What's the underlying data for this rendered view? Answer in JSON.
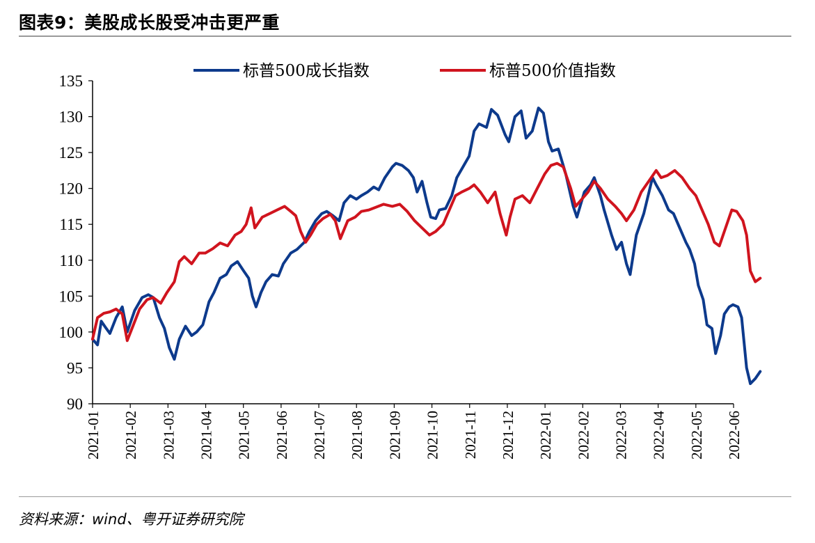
{
  "page": {
    "title": "图表9：美股成长股受冲击更严重",
    "source": "资料来源：wind、粤开证券研究院"
  },
  "chart_data": {
    "type": "line",
    "ylim": [
      90,
      135
    ],
    "yticks": [
      90,
      95,
      100,
      105,
      110,
      115,
      120,
      125,
      130,
      135
    ],
    "xticks": [
      "2021-01",
      "2021-02",
      "2021-03",
      "2021-04",
      "2021-05",
      "2021-06",
      "2021-07",
      "2021-08",
      "2021-09",
      "2021-10",
      "2021-11",
      "2021-12",
      "2022-01",
      "2022-02",
      "2022-03",
      "2022-04",
      "2022-05",
      "2022-06"
    ],
    "x_start": "2021-01-01",
    "x_end": "2022-06-06",
    "grid": false,
    "legend_position": "top",
    "series": [
      {
        "name": "标普500成长指数",
        "color": "#0d3a8c",
        "points": [
          [
            "2021-01-01",
            99.0
          ],
          [
            "2021-01-05",
            98.2
          ],
          [
            "2021-01-08",
            101.5
          ],
          [
            "2021-01-12",
            100.5
          ],
          [
            "2021-01-15",
            99.8
          ],
          [
            "2021-01-20",
            102.0
          ],
          [
            "2021-01-25",
            103.5
          ],
          [
            "2021-01-29",
            100.0
          ],
          [
            "2021-02-04",
            103.0
          ],
          [
            "2021-02-10",
            104.8
          ],
          [
            "2021-02-15",
            105.2
          ],
          [
            "2021-02-19",
            104.8
          ],
          [
            "2021-02-24",
            102.0
          ],
          [
            "2021-02-28",
            100.5
          ],
          [
            "2021-03-04",
            97.8
          ],
          [
            "2021-03-08",
            96.2
          ],
          [
            "2021-03-12",
            99.0
          ],
          [
            "2021-03-17",
            100.8
          ],
          [
            "2021-03-22",
            99.5
          ],
          [
            "2021-03-26",
            100.0
          ],
          [
            "2021-03-31",
            101.0
          ],
          [
            "2021-04-05",
            104.2
          ],
          [
            "2021-04-09",
            105.5
          ],
          [
            "2021-04-14",
            107.5
          ],
          [
            "2021-04-19",
            108.0
          ],
          [
            "2021-04-23",
            109.2
          ],
          [
            "2021-04-28",
            109.8
          ],
          [
            "2021-05-03",
            108.5
          ],
          [
            "2021-05-07",
            107.5
          ],
          [
            "2021-05-10",
            105.0
          ],
          [
            "2021-05-13",
            103.5
          ],
          [
            "2021-05-17",
            105.5
          ],
          [
            "2021-05-21",
            107.0
          ],
          [
            "2021-05-26",
            108.0
          ],
          [
            "2021-05-31",
            107.8
          ],
          [
            "2021-06-04",
            109.5
          ],
          [
            "2021-06-10",
            111.0
          ],
          [
            "2021-06-15",
            111.5
          ],
          [
            "2021-06-21",
            112.5
          ],
          [
            "2021-06-25",
            114.0
          ],
          [
            "2021-06-30",
            115.5
          ],
          [
            "2021-07-05",
            116.5
          ],
          [
            "2021-07-09",
            116.8
          ],
          [
            "2021-07-14",
            116.2
          ],
          [
            "2021-07-19",
            115.5
          ],
          [
            "2021-07-23",
            118.0
          ],
          [
            "2021-07-28",
            119.0
          ],
          [
            "2021-08-02",
            118.5
          ],
          [
            "2021-08-06",
            119.0
          ],
          [
            "2021-08-11",
            119.5
          ],
          [
            "2021-08-16",
            120.2
          ],
          [
            "2021-08-20",
            119.8
          ],
          [
            "2021-08-25",
            121.5
          ],
          [
            "2021-08-31",
            123.0
          ],
          [
            "2021-09-03",
            123.5
          ],
          [
            "2021-09-08",
            123.2
          ],
          [
            "2021-09-13",
            122.5
          ],
          [
            "2021-09-17",
            121.5
          ],
          [
            "2021-09-20",
            119.5
          ],
          [
            "2021-09-24",
            121.0
          ],
          [
            "2021-09-28",
            118.0
          ],
          [
            "2021-10-01",
            116.0
          ],
          [
            "2021-10-05",
            115.8
          ],
          [
            "2021-10-08",
            117.0
          ],
          [
            "2021-10-13",
            117.2
          ],
          [
            "2021-10-18",
            119.0
          ],
          [
            "2021-10-22",
            121.5
          ],
          [
            "2021-10-27",
            123.0
          ],
          [
            "2021-11-01",
            124.5
          ],
          [
            "2021-11-05",
            128.0
          ],
          [
            "2021-11-09",
            129.0
          ],
          [
            "2021-11-15",
            128.5
          ],
          [
            "2021-11-19",
            131.0
          ],
          [
            "2021-11-24",
            130.2
          ],
          [
            "2021-11-30",
            127.5
          ],
          [
            "2021-12-03",
            126.5
          ],
          [
            "2021-12-08",
            130.0
          ],
          [
            "2021-12-13",
            130.8
          ],
          [
            "2021-12-17",
            127.0
          ],
          [
            "2021-12-22",
            128.0
          ],
          [
            "2021-12-27",
            131.2
          ],
          [
            "2021-12-31",
            130.5
          ],
          [
            "2022-01-04",
            126.5
          ],
          [
            "2022-01-07",
            125.2
          ],
          [
            "2022-01-12",
            125.5
          ],
          [
            "2022-01-18",
            122.0
          ],
          [
            "2022-01-24",
            117.5
          ],
          [
            "2022-01-27",
            116.0
          ],
          [
            "2022-02-02",
            119.5
          ],
          [
            "2022-02-07",
            120.5
          ],
          [
            "2022-02-10",
            121.5
          ],
          [
            "2022-02-15",
            119.0
          ],
          [
            "2022-02-18",
            117.0
          ],
          [
            "2022-02-24",
            113.5
          ],
          [
            "2022-02-28",
            111.5
          ],
          [
            "2022-03-04",
            112.5
          ],
          [
            "2022-03-08",
            109.5
          ],
          [
            "2022-03-11",
            108.0
          ],
          [
            "2022-03-16",
            113.5
          ],
          [
            "2022-03-22",
            116.5
          ],
          [
            "2022-03-29",
            121.5
          ],
          [
            "2022-04-01",
            120.5
          ],
          [
            "2022-04-06",
            119.0
          ],
          [
            "2022-04-11",
            117.0
          ],
          [
            "2022-04-15",
            116.5
          ],
          [
            "2022-04-20",
            114.5
          ],
          [
            "2022-04-25",
            112.5
          ],
          [
            "2022-04-28",
            111.5
          ],
          [
            "2022-05-02",
            109.5
          ],
          [
            "2022-05-05",
            106.5
          ],
          [
            "2022-05-09",
            104.5
          ],
          [
            "2022-05-12",
            101.0
          ],
          [
            "2022-05-16",
            100.5
          ],
          [
            "2022-05-19",
            97.0
          ],
          [
            "2022-05-23",
            99.5
          ],
          [
            "2022-05-26",
            102.5
          ],
          [
            "2022-05-30",
            103.5
          ],
          [
            "2022-06-02",
            103.8
          ],
          [
            "2022-06-06",
            103.5
          ],
          [
            "2022-06-09",
            102.0
          ],
          [
            "2022-06-13",
            95.0
          ],
          [
            "2022-06-16",
            92.8
          ],
          [
            "2022-06-20",
            93.5
          ],
          [
            "2022-06-24",
            94.5
          ]
        ]
      },
      {
        "name": "标普500价值指数",
        "color": "#d0141e",
        "points": [
          [
            "2021-01-01",
            99.0
          ],
          [
            "2021-01-05",
            102.0
          ],
          [
            "2021-01-10",
            102.6
          ],
          [
            "2021-01-15",
            102.8
          ],
          [
            "2021-01-20",
            103.2
          ],
          [
            "2021-01-25",
            102.5
          ],
          [
            "2021-01-29",
            98.8
          ],
          [
            "2021-02-03",
            101.0
          ],
          [
            "2021-02-08",
            103.2
          ],
          [
            "2021-02-14",
            104.5
          ],
          [
            "2021-02-19",
            104.8
          ],
          [
            "2021-02-25",
            104.0
          ],
          [
            "2021-03-02",
            105.5
          ],
          [
            "2021-03-08",
            107.0
          ],
          [
            "2021-03-12",
            109.8
          ],
          [
            "2021-03-16",
            110.5
          ],
          [
            "2021-03-22",
            109.5
          ],
          [
            "2021-03-28",
            111.0
          ],
          [
            "2021-04-02",
            111.0
          ],
          [
            "2021-04-08",
            111.6
          ],
          [
            "2021-04-14",
            112.4
          ],
          [
            "2021-04-20",
            112.0
          ],
          [
            "2021-04-26",
            113.5
          ],
          [
            "2021-05-01",
            114.0
          ],
          [
            "2021-05-05",
            115.0
          ],
          [
            "2021-05-09",
            117.3
          ],
          [
            "2021-05-12",
            114.5
          ],
          [
            "2021-05-18",
            116.0
          ],
          [
            "2021-05-24",
            116.5
          ],
          [
            "2021-05-30",
            117.0
          ],
          [
            "2021-06-05",
            117.5
          ],
          [
            "2021-06-10",
            116.8
          ],
          [
            "2021-06-14",
            116.2
          ],
          [
            "2021-06-18",
            114.0
          ],
          [
            "2021-06-22",
            112.5
          ],
          [
            "2021-06-26",
            113.5
          ],
          [
            "2021-07-01",
            115.0
          ],
          [
            "2021-07-06",
            115.8
          ],
          [
            "2021-07-12",
            116.4
          ],
          [
            "2021-07-16",
            115.5
          ],
          [
            "2021-07-20",
            113.0
          ],
          [
            "2021-07-26",
            115.5
          ],
          [
            "2021-08-01",
            116.0
          ],
          [
            "2021-08-06",
            116.8
          ],
          [
            "2021-08-12",
            117.0
          ],
          [
            "2021-08-18",
            117.4
          ],
          [
            "2021-08-24",
            117.8
          ],
          [
            "2021-08-31",
            117.5
          ],
          [
            "2021-09-06",
            117.8
          ],
          [
            "2021-09-12",
            116.8
          ],
          [
            "2021-09-18",
            115.5
          ],
          [
            "2021-09-24",
            114.5
          ],
          [
            "2021-09-30",
            113.5
          ],
          [
            "2021-10-05",
            114.0
          ],
          [
            "2021-10-11",
            115.0
          ],
          [
            "2021-10-16",
            117.0
          ],
          [
            "2021-10-21",
            119.0
          ],
          [
            "2021-10-26",
            119.5
          ],
          [
            "2021-11-01",
            120.0
          ],
          [
            "2021-11-05",
            120.5
          ],
          [
            "2021-11-10",
            119.5
          ],
          [
            "2021-11-16",
            118.0
          ],
          [
            "2021-11-22",
            119.5
          ],
          [
            "2021-11-26",
            116.5
          ],
          [
            "2021-12-01",
            113.5
          ],
          [
            "2021-12-04",
            116.0
          ],
          [
            "2021-12-08",
            118.5
          ],
          [
            "2021-12-14",
            119.0
          ],
          [
            "2021-12-20",
            118.0
          ],
          [
            "2021-12-26",
            120.0
          ],
          [
            "2022-01-01",
            122.0
          ],
          [
            "2022-01-06",
            123.2
          ],
          [
            "2022-01-11",
            123.5
          ],
          [
            "2022-01-16",
            123.0
          ],
          [
            "2022-01-22",
            120.0
          ],
          [
            "2022-01-26",
            117.5
          ],
          [
            "2022-01-31",
            118.5
          ],
          [
            "2022-02-05",
            119.5
          ],
          [
            "2022-02-10",
            121.0
          ],
          [
            "2022-02-15",
            120.0
          ],
          [
            "2022-02-21",
            118.5
          ],
          [
            "2022-02-27",
            117.5
          ],
          [
            "2022-03-04",
            116.5
          ],
          [
            "2022-03-08",
            115.5
          ],
          [
            "2022-03-14",
            117.0
          ],
          [
            "2022-03-20",
            119.5
          ],
          [
            "2022-03-26",
            121.0
          ],
          [
            "2022-04-01",
            122.5
          ],
          [
            "2022-04-05",
            121.5
          ],
          [
            "2022-04-10",
            121.8
          ],
          [
            "2022-04-16",
            122.5
          ],
          [
            "2022-04-22",
            121.5
          ],
          [
            "2022-04-28",
            120.0
          ],
          [
            "2022-05-03",
            119.0
          ],
          [
            "2022-05-08",
            117.0
          ],
          [
            "2022-05-13",
            115.0
          ],
          [
            "2022-05-18",
            112.5
          ],
          [
            "2022-05-22",
            112.0
          ],
          [
            "2022-05-27",
            114.5
          ],
          [
            "2022-06-01",
            117.0
          ],
          [
            "2022-06-05",
            116.8
          ],
          [
            "2022-06-10",
            115.5
          ],
          [
            "2022-06-13",
            113.5
          ],
          [
            "2022-06-16",
            108.5
          ],
          [
            "2022-06-20",
            107.0
          ],
          [
            "2022-06-24",
            107.5
          ]
        ]
      }
    ]
  }
}
